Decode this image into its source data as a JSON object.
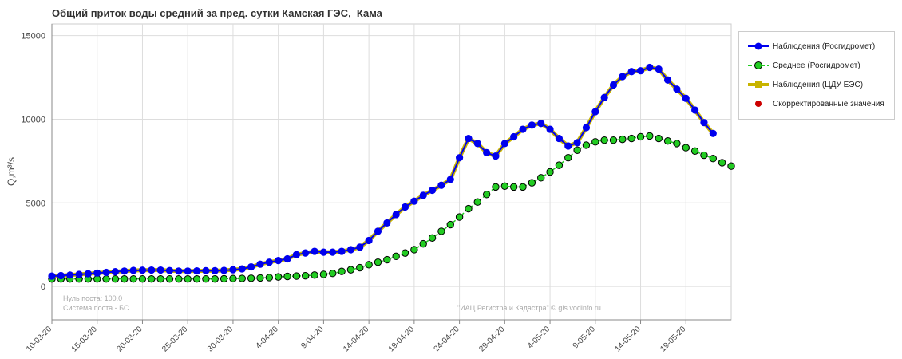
{
  "chart_data": {
    "type": "line",
    "title": "Общий приток воды средний за пред. сутки Камская ГЭС,  Кама",
    "ylabel": "Q,m³/s",
    "xlabel": "",
    "ylim": [
      -2000,
      15700
    ],
    "xlim": [
      "2020-03-10",
      "2020-05-24"
    ],
    "grid": true,
    "legend_position": "right",
    "y_ticks": [
      "0",
      "5000",
      "10000",
      "15000"
    ],
    "x_ticks": [
      "10-03-20",
      "15-03-20",
      "20-03-20",
      "25-03-20",
      "30-03-20",
      "4-04-20",
      "9-04-20",
      "14-04-20",
      "19-04-20",
      "24-04-20",
      "29-04-20",
      "4-05-20",
      "9-05-20",
      "14-05-20",
      "19-05-20"
    ],
    "x_start": "2020-03-10",
    "series": [
      {
        "name": "Наблюдения (Росгидромет)",
        "color": "#0000ee",
        "values": [
          620,
          650,
          680,
          720,
          760,
          800,
          840,
          880,
          920,
          960,
          970,
          980,
          980,
          950,
          920,
          920,
          930,
          940,
          940,
          960,
          1000,
          1050,
          1170,
          1330,
          1450,
          1550,
          1650,
          1900,
          2000,
          2100,
          2050,
          2050,
          2100,
          2200,
          2350,
          2750,
          3300,
          3800,
          4300,
          4750,
          5100,
          5450,
          5750,
          6050,
          6400,
          7700,
          8850,
          8550,
          8000,
          7800,
          8550,
          8950,
          9400,
          9650,
          9750,
          9400,
          8850,
          8400,
          8600,
          9500,
          10450,
          11300,
          12050,
          12550,
          12850,
          12900,
          13100,
          13000,
          12350,
          11800,
          11250,
          10550,
          9800,
          9150
        ]
      },
      {
        "name": "Среднее (Росгидромет)",
        "color": "#22cc22",
        "values": [
          450,
          450,
          450,
          450,
          450,
          450,
          450,
          450,
          450,
          450,
          450,
          450,
          450,
          450,
          450,
          450,
          450,
          450,
          450,
          460,
          470,
          480,
          490,
          510,
          530,
          570,
          600,
          620,
          640,
          680,
          720,
          780,
          900,
          1000,
          1120,
          1300,
          1450,
          1600,
          1800,
          2000,
          2200,
          2550,
          2900,
          3300,
          3700,
          4150,
          4650,
          5050,
          5500,
          5950,
          6000,
          5950,
          5950,
          6200,
          6500,
          6850,
          7250,
          7700,
          8150,
          8450,
          8650,
          8750,
          8750,
          8800,
          8850,
          8950,
          9000,
          8850,
          8700,
          8550,
          8300,
          8100,
          7850,
          7650,
          7400,
          7200
        ]
      },
      {
        "name": "Наблюдения (ЦДУ ЕЭС)",
        "color": "#c8b400",
        "values": [
          620,
          650,
          680,
          720,
          760,
          800,
          840,
          880,
          920,
          960,
          970,
          980,
          980,
          950,
          920,
          920,
          930,
          940,
          940,
          960,
          1000,
          1050,
          1170,
          1330,
          1450,
          1550,
          1650,
          1900,
          2000,
          2100,
          2050,
          2050,
          2100,
          2200,
          2350,
          2750,
          3300,
          3800,
          4300,
          4750,
          5100,
          5450,
          5750,
          6050,
          6400,
          7700,
          8850,
          8550,
          8000,
          7800,
          8550,
          8950,
          9400,
          9650,
          9750,
          9400,
          8850,
          8400,
          8600,
          9500,
          10450,
          11300,
          12050,
          12550,
          12850,
          12900,
          13100,
          13000,
          12350,
          11800,
          11250,
          10550,
          9800,
          9150
        ]
      },
      {
        "name": "Скорректированные значения",
        "color": "#cc0000",
        "values": []
      }
    ]
  },
  "annotations": {
    "watermark": "\"ИАЦ Регистра и Кадастра\" © gis.vodinfo.ru",
    "post_zero": "Нуль поста: 100.0",
    "post_system": "Система поста - БС"
  }
}
